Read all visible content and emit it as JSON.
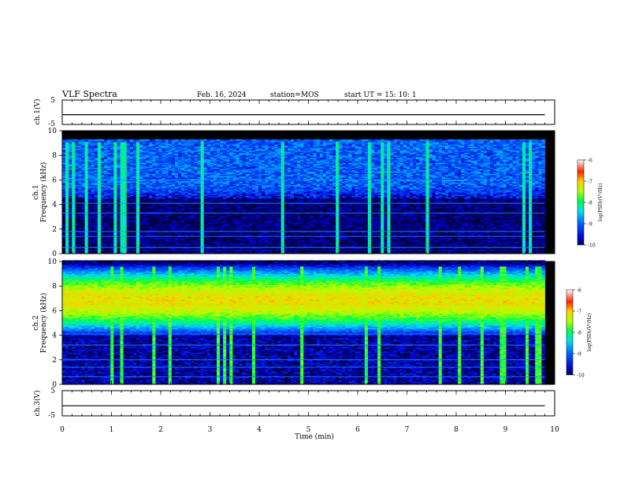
{
  "header": {
    "title": "VLF Spectra",
    "date": "Feb. 16, 2024",
    "station": "station=MOS",
    "start": "start  UT =   15: 10: 1"
  },
  "chart_data": [
    {
      "type": "line",
      "panel": "ch1-voltage",
      "ylabel": "ch.1(V)",
      "ylim": [
        -5,
        5
      ],
      "yticks": [
        "5",
        "-5"
      ],
      "xlim": [
        0,
        10
      ],
      "series": [
        {
          "x": [
            0,
            9.8
          ],
          "values": [
            -1,
            -1
          ]
        }
      ]
    },
    {
      "type": "heatmap",
      "panel": "ch1-spectrogram",
      "ylabel": "ch.1\nFrequency (kHz)",
      "ylim": [
        0,
        10
      ],
      "yticks": [
        "0",
        "2",
        "4",
        "6",
        "8",
        "10"
      ],
      "xlim": [
        0,
        10
      ],
      "data_extent_x": [
        0,
        9.8
      ],
      "band_kHz": [
        4.5,
        9.2
      ],
      "peak_level": -8.6,
      "colorbar": {
        "label": "log(PSD)(V²/Hz)",
        "range": [
          -10,
          -6
        ],
        "ticks": [
          "-6",
          "-7",
          "-8",
          "-9",
          "-10"
        ]
      }
    },
    {
      "type": "heatmap",
      "panel": "ch2-spectrogram",
      "ylabel": "ch.2\nFrequency (kHz)",
      "ylim": [
        0,
        10
      ],
      "yticks": [
        "0",
        "2",
        "4",
        "6",
        "8",
        "10"
      ],
      "xlim": [
        0,
        10
      ],
      "data_extent_x": [
        0,
        9.8
      ],
      "band_kHz": [
        3.8,
        9.8
      ],
      "peak_kHz": 6.8,
      "peak_level": -6.9,
      "colorbar": {
        "label": "log(PSD)(V²/Hz)",
        "range": [
          -10,
          -6
        ],
        "ticks": [
          "-6",
          "-7",
          "-8",
          "-9",
          "-10"
        ]
      }
    },
    {
      "type": "line",
      "panel": "ch3-voltage",
      "ylabel": "ch.3(V)",
      "ylim": [
        -5,
        5
      ],
      "yticks": [
        "5",
        "-5"
      ],
      "xlim": [
        0,
        10
      ],
      "xlabel": "Time  (min)",
      "xticks": [
        "0",
        "1",
        "2",
        "3",
        "4",
        "5",
        "6",
        "7",
        "8",
        "9",
        "10"
      ],
      "series": [
        {
          "x": [
            0,
            9.8
          ],
          "values": [
            -1,
            -1
          ]
        }
      ]
    }
  ],
  "colors": {
    "background": "#ffffff",
    "axis": "#000000",
    "colormap": [
      "#000000",
      "#0000c8",
      "#0050ff",
      "#00d0ff",
      "#00ff60",
      "#b4ff00",
      "#ffd000",
      "#ff3000",
      "#ffffff"
    ]
  }
}
